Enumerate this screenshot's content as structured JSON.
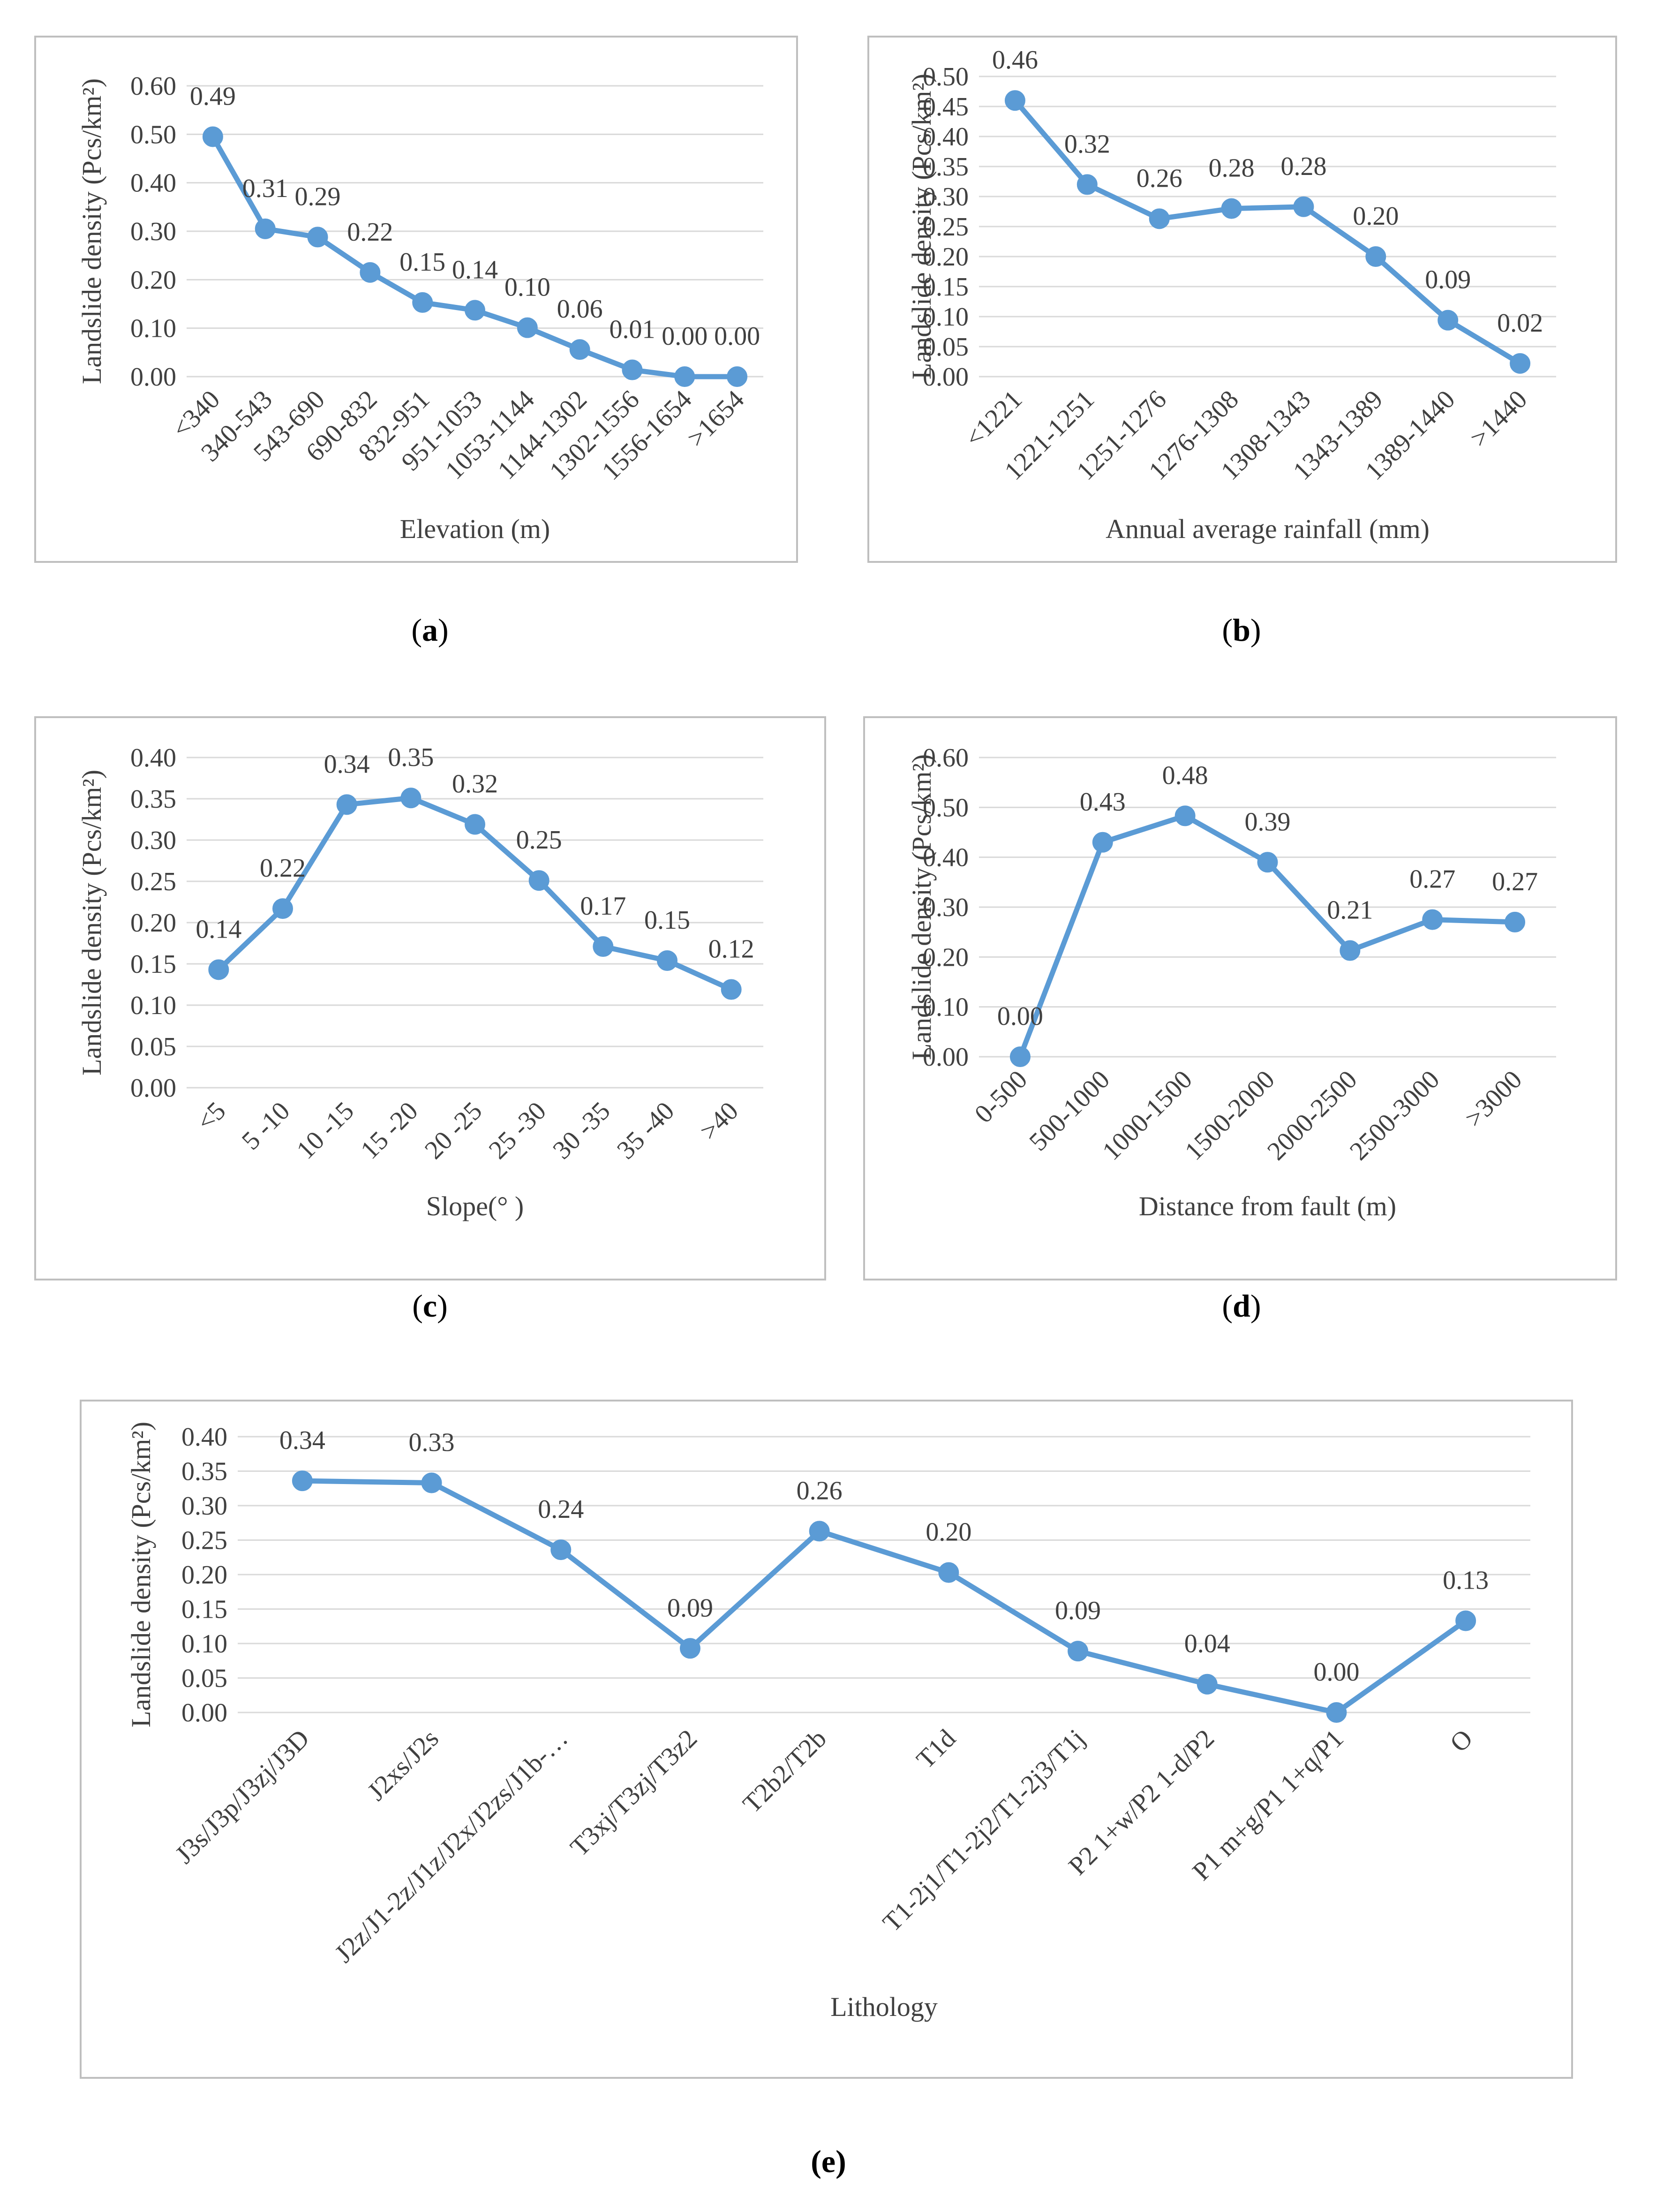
{
  "colors": {
    "line": "#5b9bd5",
    "grid": "#d9d9d9",
    "frame": "#bfbfbf",
    "text": "#404040"
  },
  "chart_data": [
    {
      "id": "a",
      "type": "line",
      "caption_letter": "a",
      "ylabel": "Landslide density (Pcs/km²)",
      "xlabel": "Elevation (m)",
      "ylim": [
        0,
        0.6
      ],
      "ystep": 0.1,
      "ydecimals": 2,
      "grid": true,
      "categories": [
        "<340",
        "340-543",
        "543-690",
        "690-832",
        "832-951",
        "951-1053",
        "1053-1144",
        "1144-1302",
        "1302-1556",
        "1556-1654",
        ">1654"
      ],
      "values": [
        0.495,
        0.305,
        0.288,
        0.215,
        0.153,
        0.137,
        0.101,
        0.056,
        0.014,
        0.0,
        0.0
      ],
      "labels": [
        "0.49",
        "0.31",
        "0.29",
        "0.22",
        "0.15",
        "0.14",
        "0.10",
        "0.06",
        "0.01",
        "0.00",
        "0.00"
      ]
    },
    {
      "id": "b",
      "type": "line",
      "caption_letter": "b",
      "ylabel": "Landslide density (Pcs/km²)",
      "xlabel": "Annual average rainfall (mm)",
      "ylim": [
        0,
        0.5
      ],
      "ystep": 0.05,
      "ydecimals": 2,
      "grid": true,
      "categories": [
        "<1221",
        "1221-1251",
        "1251-1276",
        "1276-1308",
        "1308-1343",
        "1343-1389",
        "1389-1440",
        ">1440"
      ],
      "values": [
        0.46,
        0.32,
        0.263,
        0.28,
        0.283,
        0.2,
        0.094,
        0.022
      ],
      "labels": [
        "0.46",
        "0.32",
        "0.26",
        "0.28",
        "0.28",
        "0.20",
        "0.09",
        "0.02"
      ]
    },
    {
      "id": "c",
      "type": "line",
      "caption_letter": "c",
      "ylabel": "Landslide density (Pcs/km²)",
      "xlabel": "Slope(° )",
      "ylim": [
        0,
        0.4
      ],
      "ystep": 0.05,
      "ydecimals": 2,
      "grid": true,
      "categories": [
        "<5",
        "5 -10",
        "10 -15",
        "15 -20",
        "20 -25",
        "25 -30",
        "30 -35",
        "35 -40",
        ">40"
      ],
      "values": [
        0.143,
        0.217,
        0.343,
        0.351,
        0.319,
        0.251,
        0.171,
        0.154,
        0.119
      ],
      "labels": [
        "0.14",
        "0.22",
        "0.34",
        "0.35",
        "0.32",
        "0.25",
        "0.17",
        "0.15",
        "0.12"
      ]
    },
    {
      "id": "d",
      "type": "line",
      "caption_letter": "d",
      "ylabel": "Landslide density (Pcs/km²)",
      "xlabel": "Distance from fault (m)",
      "ylim": [
        0,
        0.6
      ],
      "ystep": 0.1,
      "ydecimals": 2,
      "grid": true,
      "categories": [
        "0-500",
        "500-1000",
        "1000-1500",
        "1500-2000",
        "2000-2500",
        "2500-3000",
        ">3000"
      ],
      "values": [
        0.0,
        0.43,
        0.483,
        0.39,
        0.213,
        0.275,
        0.27
      ],
      "labels": [
        "0.00",
        "0.43",
        "0.48",
        "0.39",
        "0.21",
        "0.27",
        "0.27"
      ]
    },
    {
      "id": "e",
      "type": "line",
      "caption_letter": "e",
      "ylabel": "Landslide density (Pcs/km²)",
      "xlabel": "Lithology",
      "ylim": [
        0,
        0.4
      ],
      "ystep": 0.05,
      "ydecimals": 2,
      "grid": true,
      "categories": [
        "J3s/J3p/J3zj/J3D",
        "J2xs/J2s",
        "J2z/J1-2z/J1z/J2x/J2zs/J1b-…",
        "T3xj/T3zj/T3z2",
        "T2b2/T2b",
        "T1d",
        "T1-2j1/T1-2j2/T1-2j3/T1j",
        "P2 1+w/P2 1-d/P2",
        "P1 m+g/P1 1+q/P1",
        "O"
      ],
      "values": [
        0.336,
        0.333,
        0.236,
        0.093,
        0.263,
        0.203,
        0.089,
        0.041,
        0.0,
        0.133
      ],
      "labels": [
        "0.34",
        "0.33",
        "0.24",
        "0.09",
        "0.26",
        "0.20",
        "0.09",
        "0.04",
        "0.00",
        "0.13"
      ]
    }
  ]
}
